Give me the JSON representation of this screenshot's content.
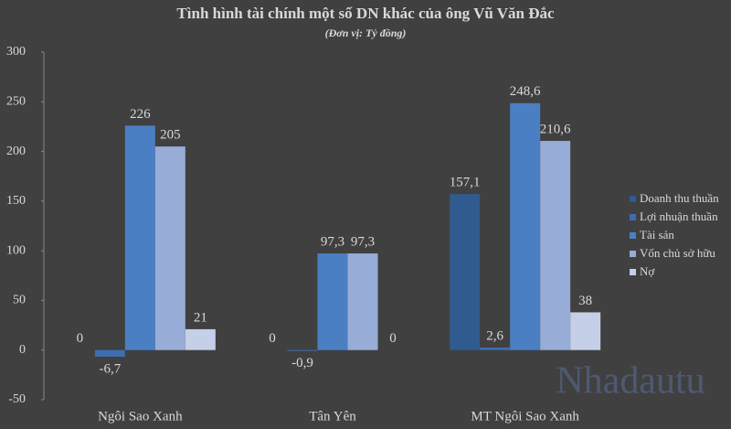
{
  "chart_data": {
    "type": "bar",
    "title": "Tình hình tài chính một số DN khác của ông Vũ Văn Đắc",
    "subtitle": "(Đơn vị: Tỷ đồng)",
    "categories": [
      "Ngôi Sao Xanh",
      "Tân Yên",
      "MT Ngôi Sao Xanh"
    ],
    "series": [
      {
        "name": "Doanh thu thuần",
        "color": "#2f5b8e",
        "values": [
          0,
          0,
          157.1
        ],
        "value_labels": [
          "0",
          "0",
          "157,1"
        ]
      },
      {
        "name": "Lợi nhuận thuần",
        "color": "#3e6db0",
        "values": [
          -6.7,
          -0.9,
          2.6
        ],
        "value_labels": [
          "-6,7",
          "-0,9",
          "2,6"
        ]
      },
      {
        "name": "Tài sản",
        "color": "#4b7fc4",
        "values": [
          226,
          97.3,
          248.6
        ],
        "value_labels": [
          "226",
          "97,3",
          "248,6"
        ]
      },
      {
        "name": "Vốn chủ sở hữu",
        "color": "#97acd6",
        "values": [
          205,
          97.3,
          210.6
        ],
        "value_labels": [
          "205",
          "97,3",
          "210,6"
        ]
      },
      {
        "name": "Nợ",
        "color": "#c5cfe7",
        "values": [
          21,
          0,
          38
        ],
        "value_labels": [
          "21",
          "0",
          "38"
        ]
      }
    ],
    "ylim": [
      -50,
      300
    ],
    "yticks": [
      -50,
      0,
      50,
      100,
      150,
      200,
      250,
      300
    ],
    "grid": false,
    "legend": "right",
    "watermark": "Nhadautu"
  }
}
